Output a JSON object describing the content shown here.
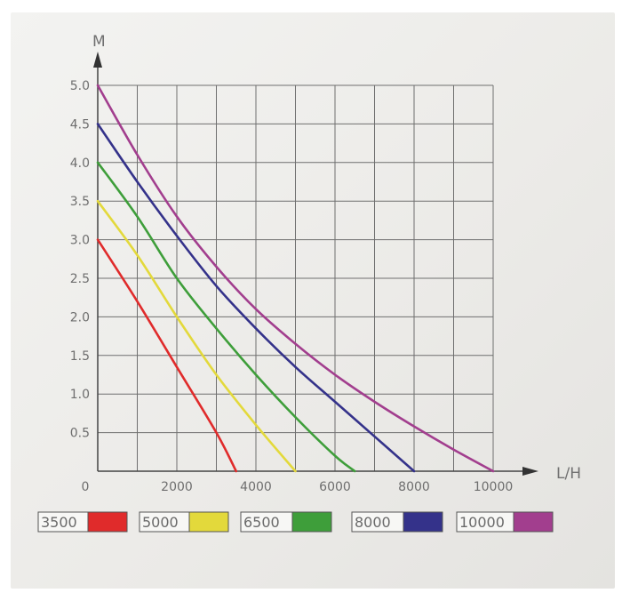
{
  "chart_data": {
    "type": "line",
    "xlabel": "L/H",
    "ylabel": "M",
    "xlim": [
      0,
      10000
    ],
    "ylim": [
      0,
      5.0
    ],
    "x_ticks": [
      "0",
      "2000",
      "4000",
      "6000",
      "8000",
      "10000"
    ],
    "y_ticks": [
      "0.5",
      "1.0",
      "1.5",
      "2.0",
      "2.5",
      "3.0",
      "3.5",
      "4.0",
      "4.5",
      "5.0"
    ],
    "grid": true,
    "legend_position": "bottom",
    "series": [
      {
        "name": "3500",
        "color": "#e02b2b",
        "x": [
          0,
          1000,
          2000,
          3000,
          3500
        ],
        "y": [
          3.0,
          2.2,
          1.35,
          0.5,
          0
        ]
      },
      {
        "name": "5000",
        "color": "#e3d93b",
        "x": [
          0,
          1000,
          2000,
          3000,
          4000,
          5000
        ],
        "y": [
          3.5,
          2.8,
          2.0,
          1.25,
          0.6,
          0
        ]
      },
      {
        "name": "6500",
        "color": "#3e9e3a",
        "x": [
          0,
          1000,
          2000,
          3000,
          4000,
          5000,
          6000,
          6500
        ],
        "y": [
          4.0,
          3.3,
          2.5,
          1.85,
          1.25,
          0.7,
          0.2,
          0
        ]
      },
      {
        "name": "8000",
        "color": "#34328a",
        "x": [
          0,
          1000,
          2000,
          3000,
          4000,
          5000,
          6000,
          7000,
          8000
        ],
        "y": [
          4.5,
          3.75,
          3.05,
          2.4,
          1.85,
          1.35,
          0.9,
          0.45,
          0
        ]
      },
      {
        "name": "10000",
        "color": "#a23e8e",
        "x": [
          0,
          1000,
          2000,
          3000,
          4000,
          5000,
          6000,
          7000,
          8000,
          9000,
          10000
        ],
        "y": [
          5.0,
          4.1,
          3.3,
          2.65,
          2.1,
          1.65,
          1.25,
          0.9,
          0.58,
          0.28,
          0
        ]
      }
    ]
  }
}
